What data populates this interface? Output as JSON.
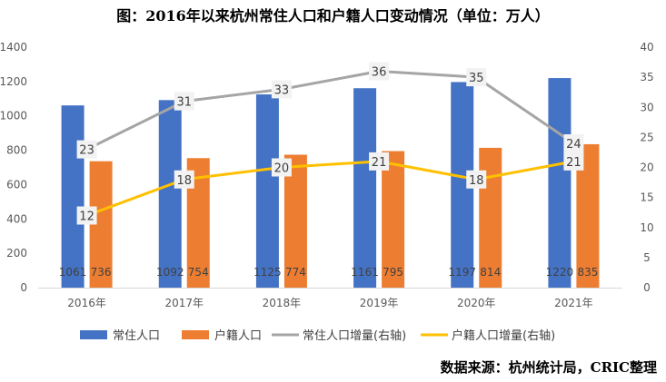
{
  "title": "图：2016年以来杭州常住人口和户籍人口变动情况（单位：万人）",
  "source": "数据来源：杭州统计局，CRIC整理",
  "colors": {
    "resident": "#4472C4",
    "registered": "#ED7D31",
    "resident_increase": "#A5A5A5",
    "registered_increase": "#FFC000"
  },
  "chart_data": {
    "type": "bar",
    "categories": [
      "2016年",
      "2017年",
      "2018年",
      "2019年",
      "2020年",
      "2021年"
    ],
    "series": [
      {
        "name": "常住人口",
        "kind": "bar",
        "axis": "left",
        "values": [
          1061,
          1092,
          1125,
          1161,
          1197,
          1220
        ]
      },
      {
        "name": "户籍人口",
        "kind": "bar",
        "axis": "left",
        "values": [
          736,
          754,
          774,
          795,
          814,
          835
        ]
      },
      {
        "name": "常住人口增量(右轴)",
        "kind": "line",
        "axis": "right",
        "values": [
          23,
          31,
          33,
          36,
          35,
          24
        ]
      },
      {
        "name": "户籍人口增量(右轴)",
        "kind": "line",
        "axis": "right",
        "values": [
          12,
          18,
          20,
          21,
          18,
          21
        ]
      }
    ],
    "y_left": {
      "min": 0,
      "max": 1400,
      "ticks": [
        0,
        200,
        400,
        600,
        800,
        1000,
        1200,
        1400
      ]
    },
    "y_right": {
      "min": 0,
      "max": 40,
      "ticks": [
        0,
        5,
        10,
        15,
        20,
        25,
        30,
        35,
        40
      ]
    },
    "legend_position": "bottom",
    "grid": false
  }
}
